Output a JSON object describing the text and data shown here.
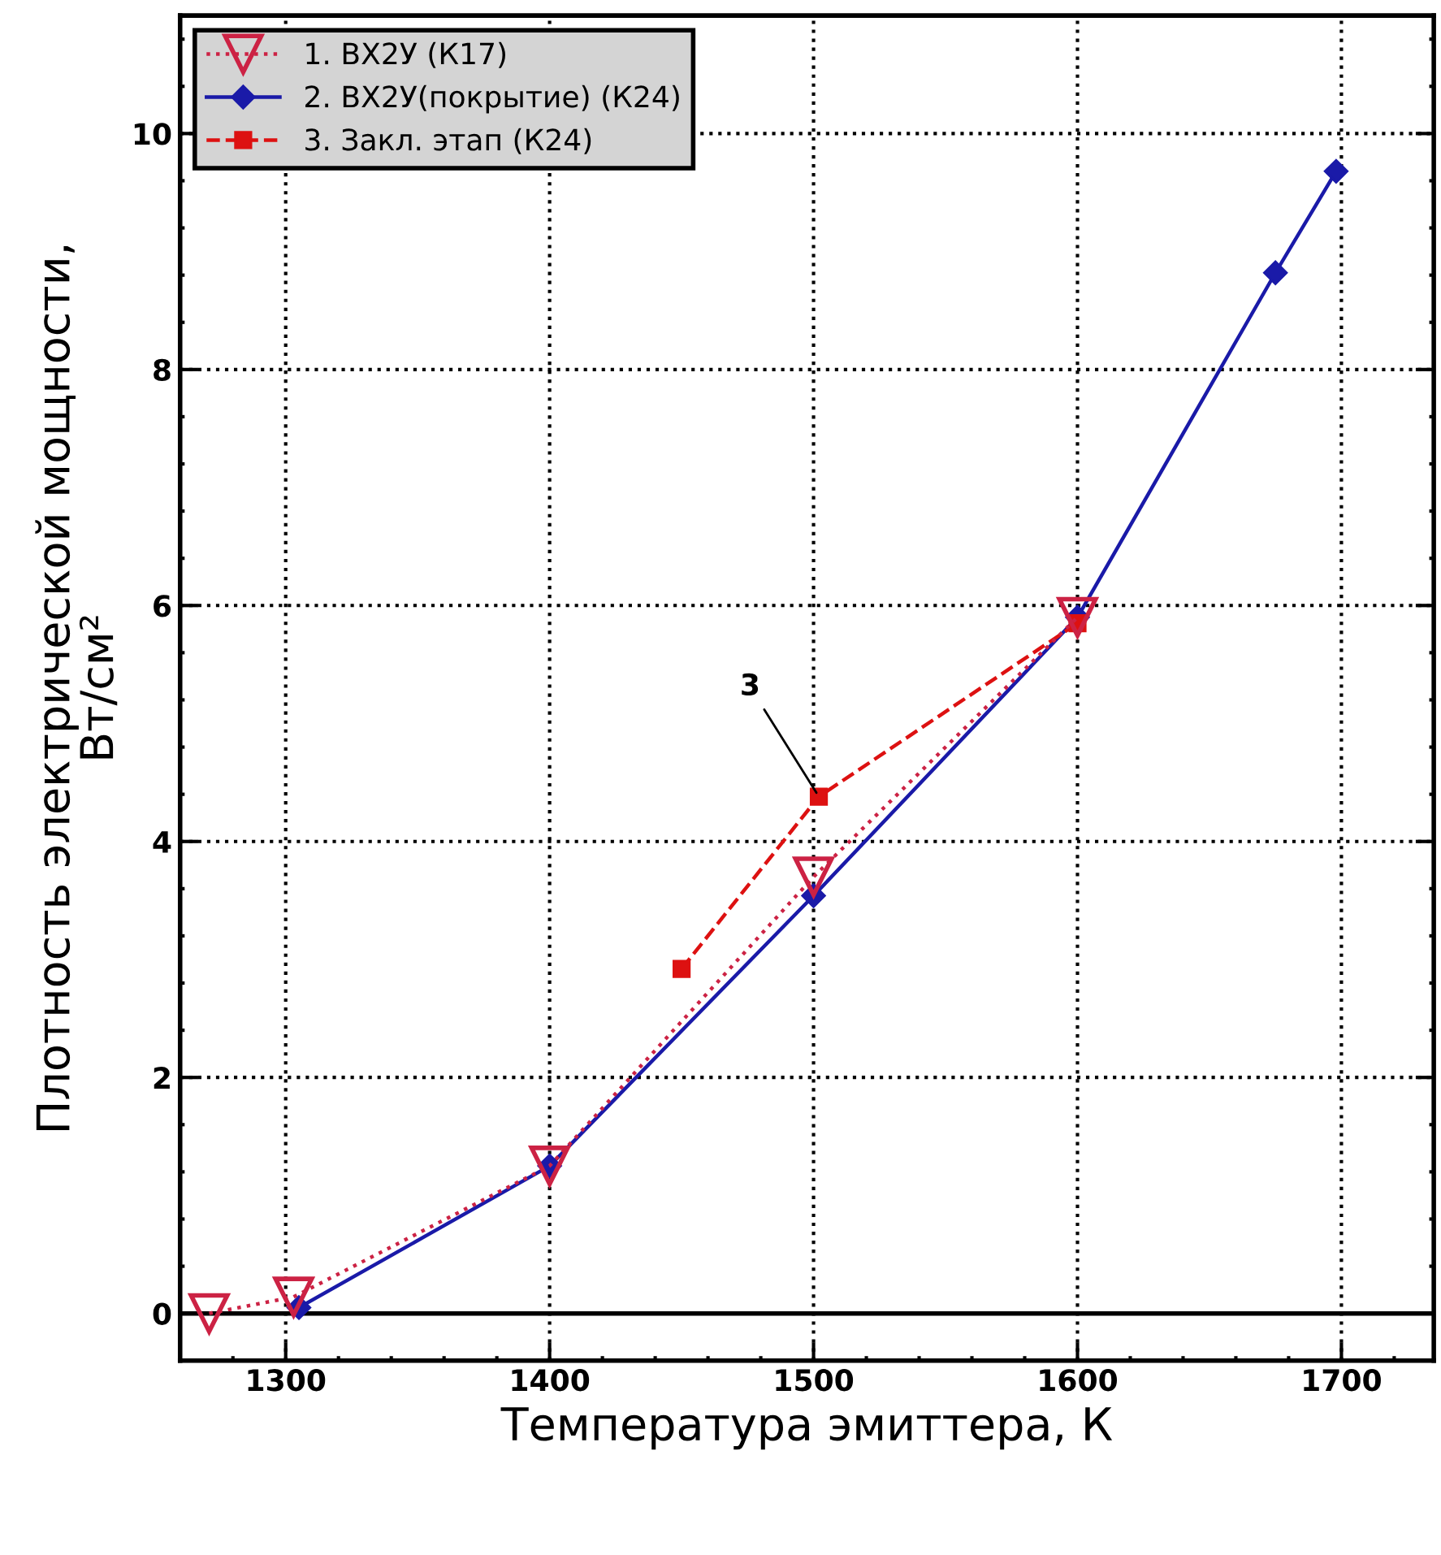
{
  "chart_data": {
    "type": "line",
    "xlabel": "Температура эмиттера, К",
    "ylabel": "Плотность электрической мощности,\nВт/см²",
    "xlim": [
      1260,
      1735
    ],
    "ylim": [
      -0.4,
      11
    ],
    "xticks": [
      1300,
      1400,
      1500,
      1600,
      1700
    ],
    "yticks": [
      0,
      2,
      4,
      6,
      8,
      10
    ],
    "grid": true,
    "legend": "top left",
    "series": [
      {
        "name": "1. ВХ2У (К17)",
        "color": "#cc2244",
        "marker": "triangle",
        "line_style": "dotted",
        "x": [
          1271,
          1303,
          1400,
          1500,
          1600
        ],
        "values": [
          0.0,
          0.14,
          1.25,
          3.7,
          5.9
        ]
      },
      {
        "name": "2. ВХ2У(покрытие) (К24)",
        "color": "#1a1aa8",
        "marker": "diamond",
        "line_style": "solid",
        "x": [
          1305,
          1400,
          1500,
          1600,
          1675,
          1698
        ],
        "values": [
          0.05,
          1.25,
          3.54,
          5.9,
          8.82,
          9.68
        ]
      },
      {
        "name": "3. Закл. этап (К24)",
        "color": "#dd1111",
        "marker": "square",
        "line_style": "dashed",
        "x": [
          1450,
          1502,
          1600
        ],
        "values": [
          2.92,
          4.38,
          5.85
        ]
      }
    ],
    "ref_lines": [
      {
        "axis": "y",
        "value": 0,
        "color": "#000000",
        "line_style": "solid"
      }
    ],
    "annotations": [
      {
        "text": "3",
        "x": 1502,
        "y": 4.38
      }
    ]
  }
}
